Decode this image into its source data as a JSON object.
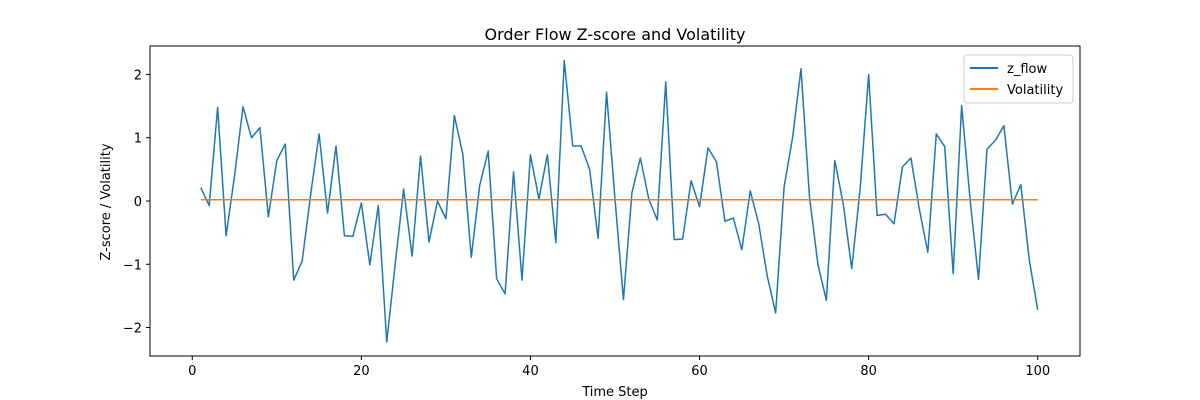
{
  "chart_data": {
    "type": "line",
    "title": "Order Flow Z-score and Volatility",
    "xlabel": "Time Step",
    "ylabel": "Z-score / Volatility",
    "xlim": [
      -5,
      105
    ],
    "ylim": [
      -2.45,
      2.45
    ],
    "xticks": [
      0,
      20,
      40,
      60,
      80,
      100
    ],
    "yticks": [
      -2,
      -1,
      0,
      1,
      2
    ],
    "ytick_labels": [
      "−2",
      "−1",
      "0",
      "1",
      "2"
    ],
    "grid": false,
    "legend_position": "top-right",
    "x": [
      1,
      2,
      3,
      4,
      5,
      6,
      7,
      8,
      9,
      10,
      11,
      12,
      13,
      14,
      15,
      16,
      17,
      18,
      19,
      20,
      21,
      22,
      23,
      24,
      25,
      26,
      27,
      28,
      29,
      30,
      31,
      32,
      33,
      34,
      35,
      36,
      37,
      38,
      39,
      40,
      41,
      42,
      43,
      44,
      45,
      46,
      47,
      48,
      49,
      50,
      51,
      52,
      53,
      54,
      55,
      56,
      57,
      58,
      59,
      60,
      61,
      62,
      63,
      64,
      65,
      66,
      67,
      68,
      69,
      70,
      71,
      72,
      73,
      74,
      75,
      76,
      77,
      78,
      79,
      80,
      81,
      82,
      83,
      84,
      85,
      86,
      87,
      88,
      89,
      90,
      91,
      92,
      93,
      94,
      95,
      96,
      97,
      98,
      99,
      100
    ],
    "series": [
      {
        "name": "z_flow",
        "color": "#1f77b4",
        "values": [
          0.21,
          -0.07,
          1.48,
          -0.55,
          0.4,
          1.49,
          1.0,
          1.16,
          -0.25,
          0.64,
          0.9,
          -1.25,
          -0.95,
          0.1,
          1.06,
          -0.19,
          0.87,
          -0.55,
          -0.56,
          -0.03,
          -1.01,
          -0.07,
          -2.23,
          -1.0,
          0.19,
          -0.87,
          0.71,
          -0.65,
          0.0,
          -0.28,
          1.35,
          0.74,
          -0.89,
          0.25,
          0.79,
          -1.23,
          -1.47,
          0.46,
          -1.25,
          0.73,
          0.03,
          0.73,
          -0.66,
          2.22,
          0.87,
          0.87,
          0.5,
          -0.59,
          1.72,
          0.03,
          -1.56,
          0.13,
          0.68,
          0.03,
          -0.3,
          1.88,
          -0.61,
          -0.6,
          0.32,
          -0.09,
          0.84,
          0.62,
          -0.32,
          -0.27,
          -0.77,
          0.16,
          -0.36,
          -1.18,
          -1.77,
          0.22,
          1.0,
          2.09,
          0.07,
          -1.0,
          -1.57,
          0.64,
          -0.05,
          -1.07,
          0.2,
          2.0,
          -0.23,
          -0.21,
          -0.36,
          0.54,
          0.68,
          -0.13,
          -0.81,
          1.06,
          0.86,
          -1.15,
          1.51,
          0.02,
          -1.24,
          0.82,
          0.96,
          1.19,
          -0.05,
          0.26,
          -0.93,
          -1.72
        ]
      },
      {
        "name": "Volatility",
        "color": "#ff7f0e",
        "values": [
          0.02,
          0.02,
          0.02,
          0.02,
          0.02,
          0.02,
          0.02,
          0.02,
          0.02,
          0.02,
          0.02,
          0.02,
          0.02,
          0.02,
          0.02,
          0.02,
          0.02,
          0.02,
          0.02,
          0.02,
          0.02,
          0.02,
          0.02,
          0.02,
          0.02,
          0.02,
          0.02,
          0.02,
          0.02,
          0.02,
          0.02,
          0.02,
          0.02,
          0.02,
          0.02,
          0.02,
          0.02,
          0.02,
          0.02,
          0.02,
          0.02,
          0.02,
          0.02,
          0.02,
          0.02,
          0.02,
          0.02,
          0.02,
          0.02,
          0.02,
          0.02,
          0.02,
          0.02,
          0.02,
          0.02,
          0.02,
          0.02,
          0.02,
          0.02,
          0.02,
          0.02,
          0.02,
          0.02,
          0.02,
          0.02,
          0.02,
          0.02,
          0.02,
          0.02,
          0.02,
          0.02,
          0.02,
          0.02,
          0.02,
          0.02,
          0.02,
          0.02,
          0.02,
          0.02,
          0.02,
          0.02,
          0.02,
          0.02,
          0.02,
          0.02,
          0.02,
          0.02,
          0.02,
          0.02,
          0.02,
          0.02,
          0.02,
          0.02,
          0.02,
          0.02,
          0.02,
          0.02,
          0.02,
          0.02,
          0.02
        ]
      }
    ]
  }
}
